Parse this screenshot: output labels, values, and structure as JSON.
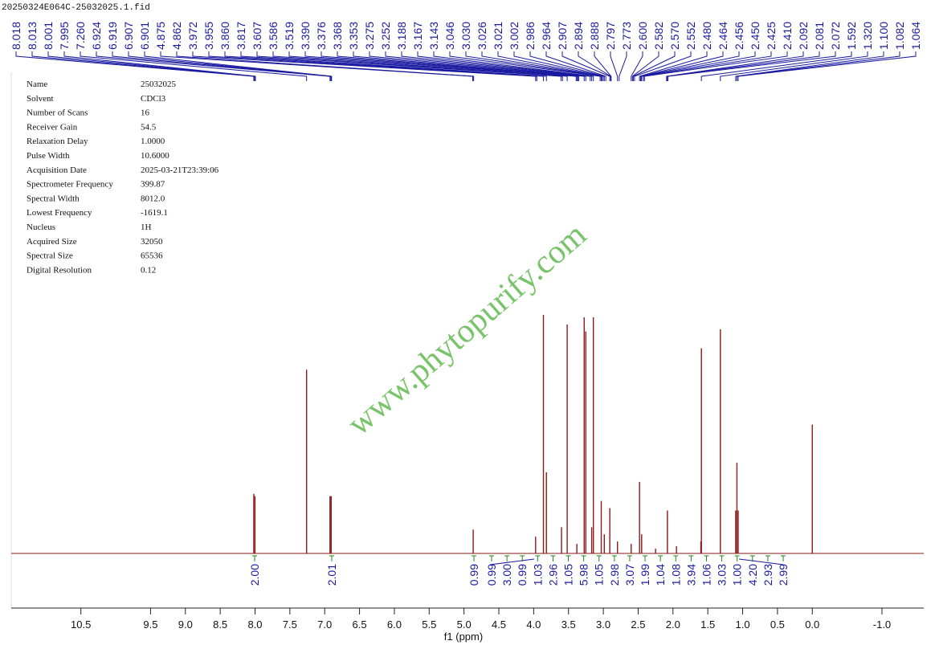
{
  "file_name": "20250324E064C-25032025.1.fid",
  "parameters": [
    [
      "Name",
      "25032025"
    ],
    [
      "Solvent",
      "CDCl3"
    ],
    [
      "Number of Scans",
      "16"
    ],
    [
      "Receiver Gain",
      "54.5"
    ],
    [
      "Relaxation Delay",
      "1.0000"
    ],
    [
      "Pulse Width",
      "10.6000"
    ],
    [
      "Acquisition Date",
      "2025-03-21T23:39:06"
    ],
    [
      "Spectrometer Frequency",
      "399.87"
    ],
    [
      "Spectral Width",
      "8012.0"
    ],
    [
      "Lowest Frequency",
      "-1619.1"
    ],
    [
      "Nucleus",
      "1H"
    ],
    [
      "Acquired Size",
      "32050"
    ],
    [
      "Spectral Size",
      "65536"
    ],
    [
      "Digital Resolution",
      "0.12"
    ]
  ],
  "watermark": "www.phytopurify.com",
  "chart_data": {
    "type": "nmr",
    "x_label": "f1 (ppm)",
    "xlim": [
      11.2,
      -1.6
    ],
    "xticks": [
      10.5,
      9.5,
      {
        "value": 9,
        "label": "9.0"
      },
      8.5,
      {
        "value": 8,
        "label": "8.0"
      },
      7.5,
      {
        "value": 7,
        "label": "7.0"
      },
      6.5,
      {
        "value": 6,
        "label": "6.0"
      },
      5.5,
      {
        "value": 5,
        "label": "5.0"
      },
      4.5,
      {
        "value": 4,
        "label": "4.0"
      },
      3.5,
      {
        "value": 3,
        "label": "3.0"
      },
      2.5,
      {
        "value": 2,
        "label": "2.0"
      },
      1.5,
      {
        "value": 1,
        "label": "1.0"
      },
      0.5,
      {
        "value": 0,
        "label": "0.0"
      },
      {
        "value": -1,
        "label": "-1.0"
      }
    ],
    "ylim": [
      0,
      100
    ],
    "color": "#8b1a1a",
    "peaks": {
      "x": [
        8.018,
        8.001,
        7.26,
        6.924,
        6.907,
        4.868,
        3.972,
        3.86,
        3.817,
        3.6,
        3.519,
        3.38,
        3.275,
        3.252,
        3.167,
        3.143,
        3.03,
        2.986,
        2.907,
        2.797,
        2.6,
        2.48,
        2.45,
        2.25,
        2.08,
        1.95,
        1.6,
        1.592,
        1.32,
        1.1,
        1.082,
        1.064,
        0
      ],
      "values": [
        25,
        24,
        77,
        24,
        24,
        10,
        7,
        100,
        34,
        11,
        96,
        4,
        99,
        93,
        11,
        99,
        22,
        8,
        19,
        5,
        4,
        30,
        8,
        2,
        18,
        3,
        5,
        86,
        94,
        18,
        38,
        18,
        54
      ]
    },
    "peak_labels": [
      {
        "value": 8.018,
        "label": "8.018"
      },
      {
        "value": 8.013,
        "label": "8.013"
      },
      {
        "value": 8.001,
        "label": "8.001"
      },
      {
        "value": 7.995,
        "label": "7.995"
      },
      {
        "value": 7.26,
        "label": "7.260"
      },
      {
        "value": 6.924,
        "label": "6.924"
      },
      {
        "value": 6.919,
        "label": "6.919"
      },
      {
        "value": 6.907,
        "label": "6.907"
      },
      {
        "value": 6.901,
        "label": "6.901"
      },
      {
        "value": 4.875,
        "label": "4.875"
      },
      {
        "value": 4.862,
        "label": "4.862"
      },
      {
        "value": 3.972,
        "label": "3.972"
      },
      {
        "value": 3.955,
        "label": "3.955"
      },
      {
        "value": 3.86,
        "label": "3.860"
      },
      {
        "value": 3.817,
        "label": "3.817"
      },
      {
        "value": 3.607,
        "label": "3.607"
      },
      {
        "value": 3.586,
        "label": "3.586"
      },
      {
        "value": 3.519,
        "label": "3.519"
      },
      {
        "value": 3.39,
        "label": "3.390"
      },
      {
        "value": 3.376,
        "label": "3.376"
      },
      {
        "value": 3.368,
        "label": "3.368"
      },
      {
        "value": 3.353,
        "label": "3.353"
      },
      {
        "value": 3.275,
        "label": "3.275"
      },
      {
        "value": 3.252,
        "label": "3.252"
      },
      {
        "value": 3.188,
        "label": "3.188"
      },
      {
        "value": 3.167,
        "label": "3.167"
      },
      {
        "value": 3.143,
        "label": "3.143"
      },
      {
        "value": 3.046,
        "label": "3.046"
      },
      {
        "value": 3.03,
        "label": "3.030"
      },
      {
        "value": 3.026,
        "label": "3.026"
      },
      {
        "value": 3.021,
        "label": "3.021"
      },
      {
        "value": 3.002,
        "label": "3.002"
      },
      {
        "value": 2.986,
        "label": "2.986"
      },
      {
        "value": 2.964,
        "label": "2.964"
      },
      {
        "value": 2.907,
        "label": "2.907"
      },
      {
        "value": 2.894,
        "label": "2.894"
      },
      {
        "value": 2.888,
        "label": "2.888"
      },
      {
        "value": 2.797,
        "label": "2.797"
      },
      {
        "value": 2.773,
        "label": "2.773"
      },
      {
        "value": 2.6,
        "label": "2.600"
      },
      {
        "value": 2.582,
        "label": "2.582"
      },
      {
        "value": 2.57,
        "label": "2.570"
      },
      {
        "value": 2.552,
        "label": "2.552"
      },
      {
        "value": 2.48,
        "label": "2.480"
      },
      {
        "value": 2.464,
        "label": "2.464"
      },
      {
        "value": 2.456,
        "label": "2.456"
      },
      {
        "value": 2.45,
        "label": "2.450"
      },
      {
        "value": 2.425,
        "label": "2.425"
      },
      {
        "value": 2.41,
        "label": "2.410"
      },
      {
        "value": 2.092,
        "label": "2.092"
      },
      {
        "value": 2.081,
        "label": "2.081"
      },
      {
        "value": 2.072,
        "label": "2.072"
      },
      {
        "value": 1.592,
        "label": "1.592"
      },
      {
        "value": 1.32,
        "label": "1.320"
      },
      {
        "value": 1.1,
        "label": "1.100"
      },
      {
        "value": 1.082,
        "label": "1.082"
      },
      {
        "value": 1.064,
        "label": "1.064"
      }
    ],
    "integrals": [
      {
        "value": 2,
        "label": "2.00"
      },
      {
        "value": 2.01,
        "label": "2.01"
      },
      {
        "value": 0.99,
        "label": "0.99"
      },
      {
        "value": 0.99,
        "label": "0.99"
      },
      {
        "value": 3,
        "label": "3.00"
      },
      {
        "value": 0.99,
        "label": "0.99"
      },
      {
        "value": 1.03,
        "label": "1.03"
      },
      {
        "value": 2.96,
        "label": "2.96"
      },
      {
        "value": 1.05,
        "label": "1.05"
      },
      {
        "value": 5.98,
        "label": "5.98"
      },
      {
        "value": 1.05,
        "label": "1.05"
      },
      {
        "value": 2.98,
        "label": "2.98"
      },
      {
        "value": 3.07,
        "label": "3.07"
      },
      {
        "value": 1.99,
        "label": "1.99"
      },
      {
        "value": 1.04,
        "label": "1.04"
      },
      {
        "value": 1.08,
        "label": "1.08"
      },
      {
        "value": 3.94,
        "label": "3.94"
      },
      {
        "value": 1.06,
        "label": "1.06"
      },
      {
        "value": 3.03,
        "label": "3.03"
      },
      {
        "value": 1,
        "label": "1.00"
      },
      {
        "value": 4.2,
        "label": "4.20"
      },
      {
        "value": 2.93,
        "label": "2.93"
      },
      {
        "value": 2.99,
        "label": "2.99"
      }
    ]
  }
}
